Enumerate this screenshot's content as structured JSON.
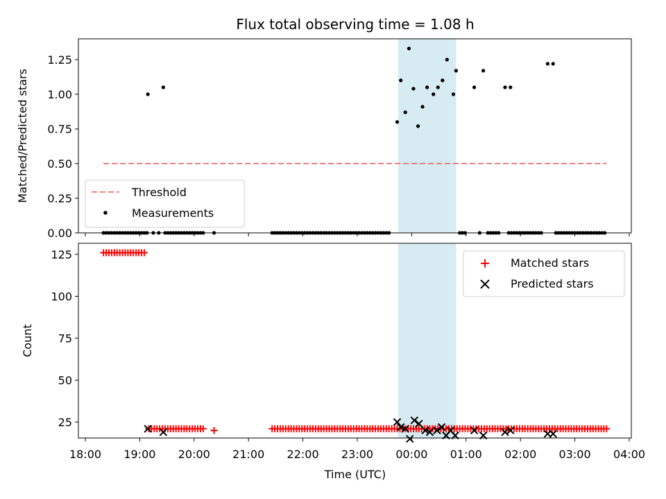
{
  "title": "Flux total observing time = 1.08 h",
  "colors": {
    "threshold": "#f07f7f",
    "measurement": "#000000",
    "matched": "#ff0000",
    "predicted": "#000000",
    "band": "#add8e6"
  },
  "chart_data": [
    {
      "type": "scatter",
      "panel": "top",
      "ylabel": "Matched/Predicted stars",
      "xlabel": "",
      "xlim": [
        "18:00",
        "04:00"
      ],
      "ylim": [
        0,
        1.4
      ],
      "yticks": [
        "0.00",
        "0.25",
        "0.50",
        "0.75",
        "1.00",
        "1.25"
      ],
      "band": [
        "23:45",
        "00:49"
      ],
      "legend_position": "lower-left",
      "legend": {
        "threshold": "Threshold",
        "measurements": "Measurements"
      },
      "threshold": {
        "name": "Threshold",
        "y": 0.5,
        "x": [
          "18:20",
          "03:35"
        ]
      },
      "measurements": {
        "name": "Measurements",
        "points": [
          [
            "19:09",
            1.0
          ],
          [
            "19:26",
            1.05
          ],
          [
            "23:44",
            0.8
          ],
          [
            "23:48",
            1.1
          ],
          [
            "23:53",
            0.87
          ],
          [
            "23:57",
            1.33
          ],
          [
            "00:02",
            1.04
          ],
          [
            "00:07",
            0.77
          ],
          [
            "00:12",
            0.91
          ],
          [
            "00:17",
            1.05
          ],
          [
            "00:24",
            1.0
          ],
          [
            "00:29",
            1.05
          ],
          [
            "00:34",
            1.1
          ],
          [
            "00:39",
            1.25
          ],
          [
            "00:46",
            1.0
          ],
          [
            "00:49",
            1.17
          ],
          [
            "01:09",
            1.05
          ],
          [
            "01:19",
            1.17
          ],
          [
            "01:43",
            1.05
          ],
          [
            "01:49",
            1.05
          ],
          [
            "02:30",
            1.22
          ],
          [
            "02:36",
            1.22
          ]
        ],
        "zero_rows": [
          [
            "18:20",
            "19:10",
            0.05
          ],
          [
            "19:15",
            "19:25",
            0.1
          ],
          [
            "19:28",
            "20:10",
            0.05
          ],
          [
            "20:22",
            "20:22",
            1
          ],
          [
            "21:26",
            "23:37",
            0.05
          ],
          [
            "00:53",
            "01:00",
            0.05
          ],
          [
            "01:15",
            "01:17",
            1
          ],
          [
            "01:24",
            "01:37",
            0.05
          ],
          [
            "01:47",
            "02:25",
            0.05
          ],
          [
            "02:39",
            "03:35",
            0.05
          ]
        ]
      }
    },
    {
      "type": "scatter",
      "panel": "bottom",
      "ylabel": "Count",
      "xlabel": "Time (UTC)",
      "xlim": [
        "18:00",
        "04:00"
      ],
      "ylim": [
        10,
        130
      ],
      "yticks": [
        "25",
        "50",
        "75",
        "100",
        "125"
      ],
      "xticks": [
        "18:00",
        "19:00",
        "20:00",
        "21:00",
        "22:00",
        "23:00",
        "00:00",
        "01:00",
        "02:00",
        "03:00",
        "04:00"
      ],
      "band": [
        "23:45",
        "00:49"
      ],
      "legend_position": "upper-right",
      "legend": {
        "matched": "Matched stars",
        "predicted": "Predicted stars"
      },
      "matched_rows": [
        [
          "18:20",
          "19:05",
          0.05,
          126
        ],
        [
          "19:10",
          "20:10",
          0.05,
          21
        ],
        [
          "20:22",
          "20:22",
          1,
          20
        ],
        [
          "21:26",
          "03:35",
          0.05,
          21
        ]
      ],
      "predicted": [
        [
          "19:09",
          21
        ],
        [
          "19:26",
          19
        ],
        [
          "23:44",
          25
        ],
        [
          "23:48",
          22
        ],
        [
          "23:53",
          21
        ],
        [
          "23:58",
          15
        ],
        [
          "00:03",
          26
        ],
        [
          "00:08",
          24
        ],
        [
          "00:15",
          20
        ],
        [
          "00:20",
          19
        ],
        [
          "00:28",
          20
        ],
        [
          "00:33",
          22
        ],
        [
          "00:38",
          17
        ],
        [
          "00:43",
          20
        ],
        [
          "00:48",
          17
        ],
        [
          "01:09",
          20
        ],
        [
          "01:19",
          17
        ],
        [
          "01:43",
          19
        ],
        [
          "01:49",
          20
        ],
        [
          "02:30",
          18
        ],
        [
          "02:36",
          18
        ]
      ]
    }
  ]
}
